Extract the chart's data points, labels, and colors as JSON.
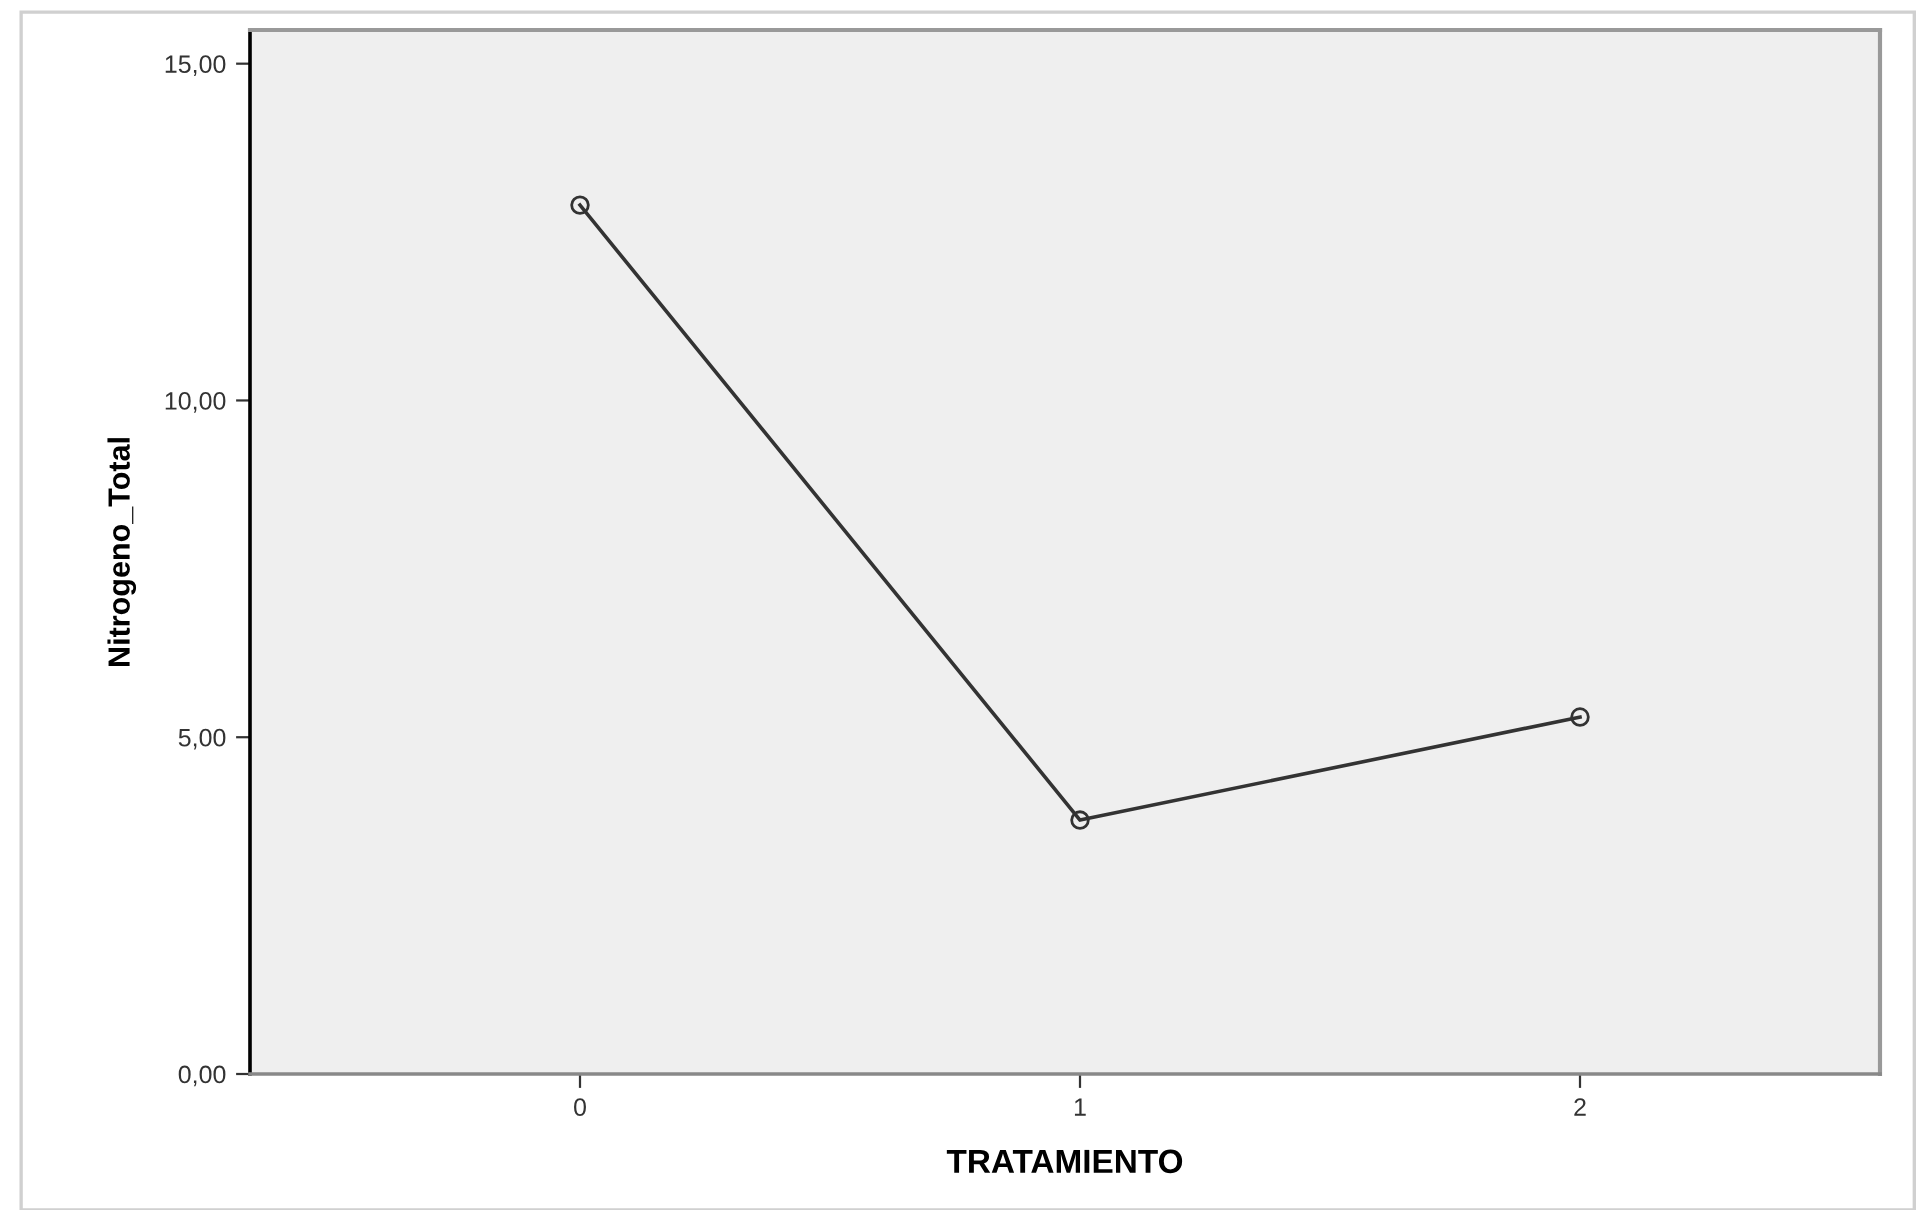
{
  "chart_data": {
    "type": "line",
    "xlabel": "TRATAMIENTO",
    "ylabel": "Nitrogeno_Total",
    "categories": [
      "0",
      "1",
      "2"
    ],
    "series": [
      {
        "color": "#333333",
        "values": [
          12.9,
          3.77,
          5.3
        ]
      }
    ],
    "ylim": [
      0,
      15.5
    ],
    "yticks": [
      {
        "value": 0,
        "label": "0,00"
      },
      {
        "value": 5,
        "label": "5,00"
      },
      {
        "value": 10,
        "label": "10,00"
      },
      {
        "value": 15,
        "label": "15,00"
      }
    ],
    "marker": "circle",
    "line_style": "solid",
    "grid": false
  }
}
